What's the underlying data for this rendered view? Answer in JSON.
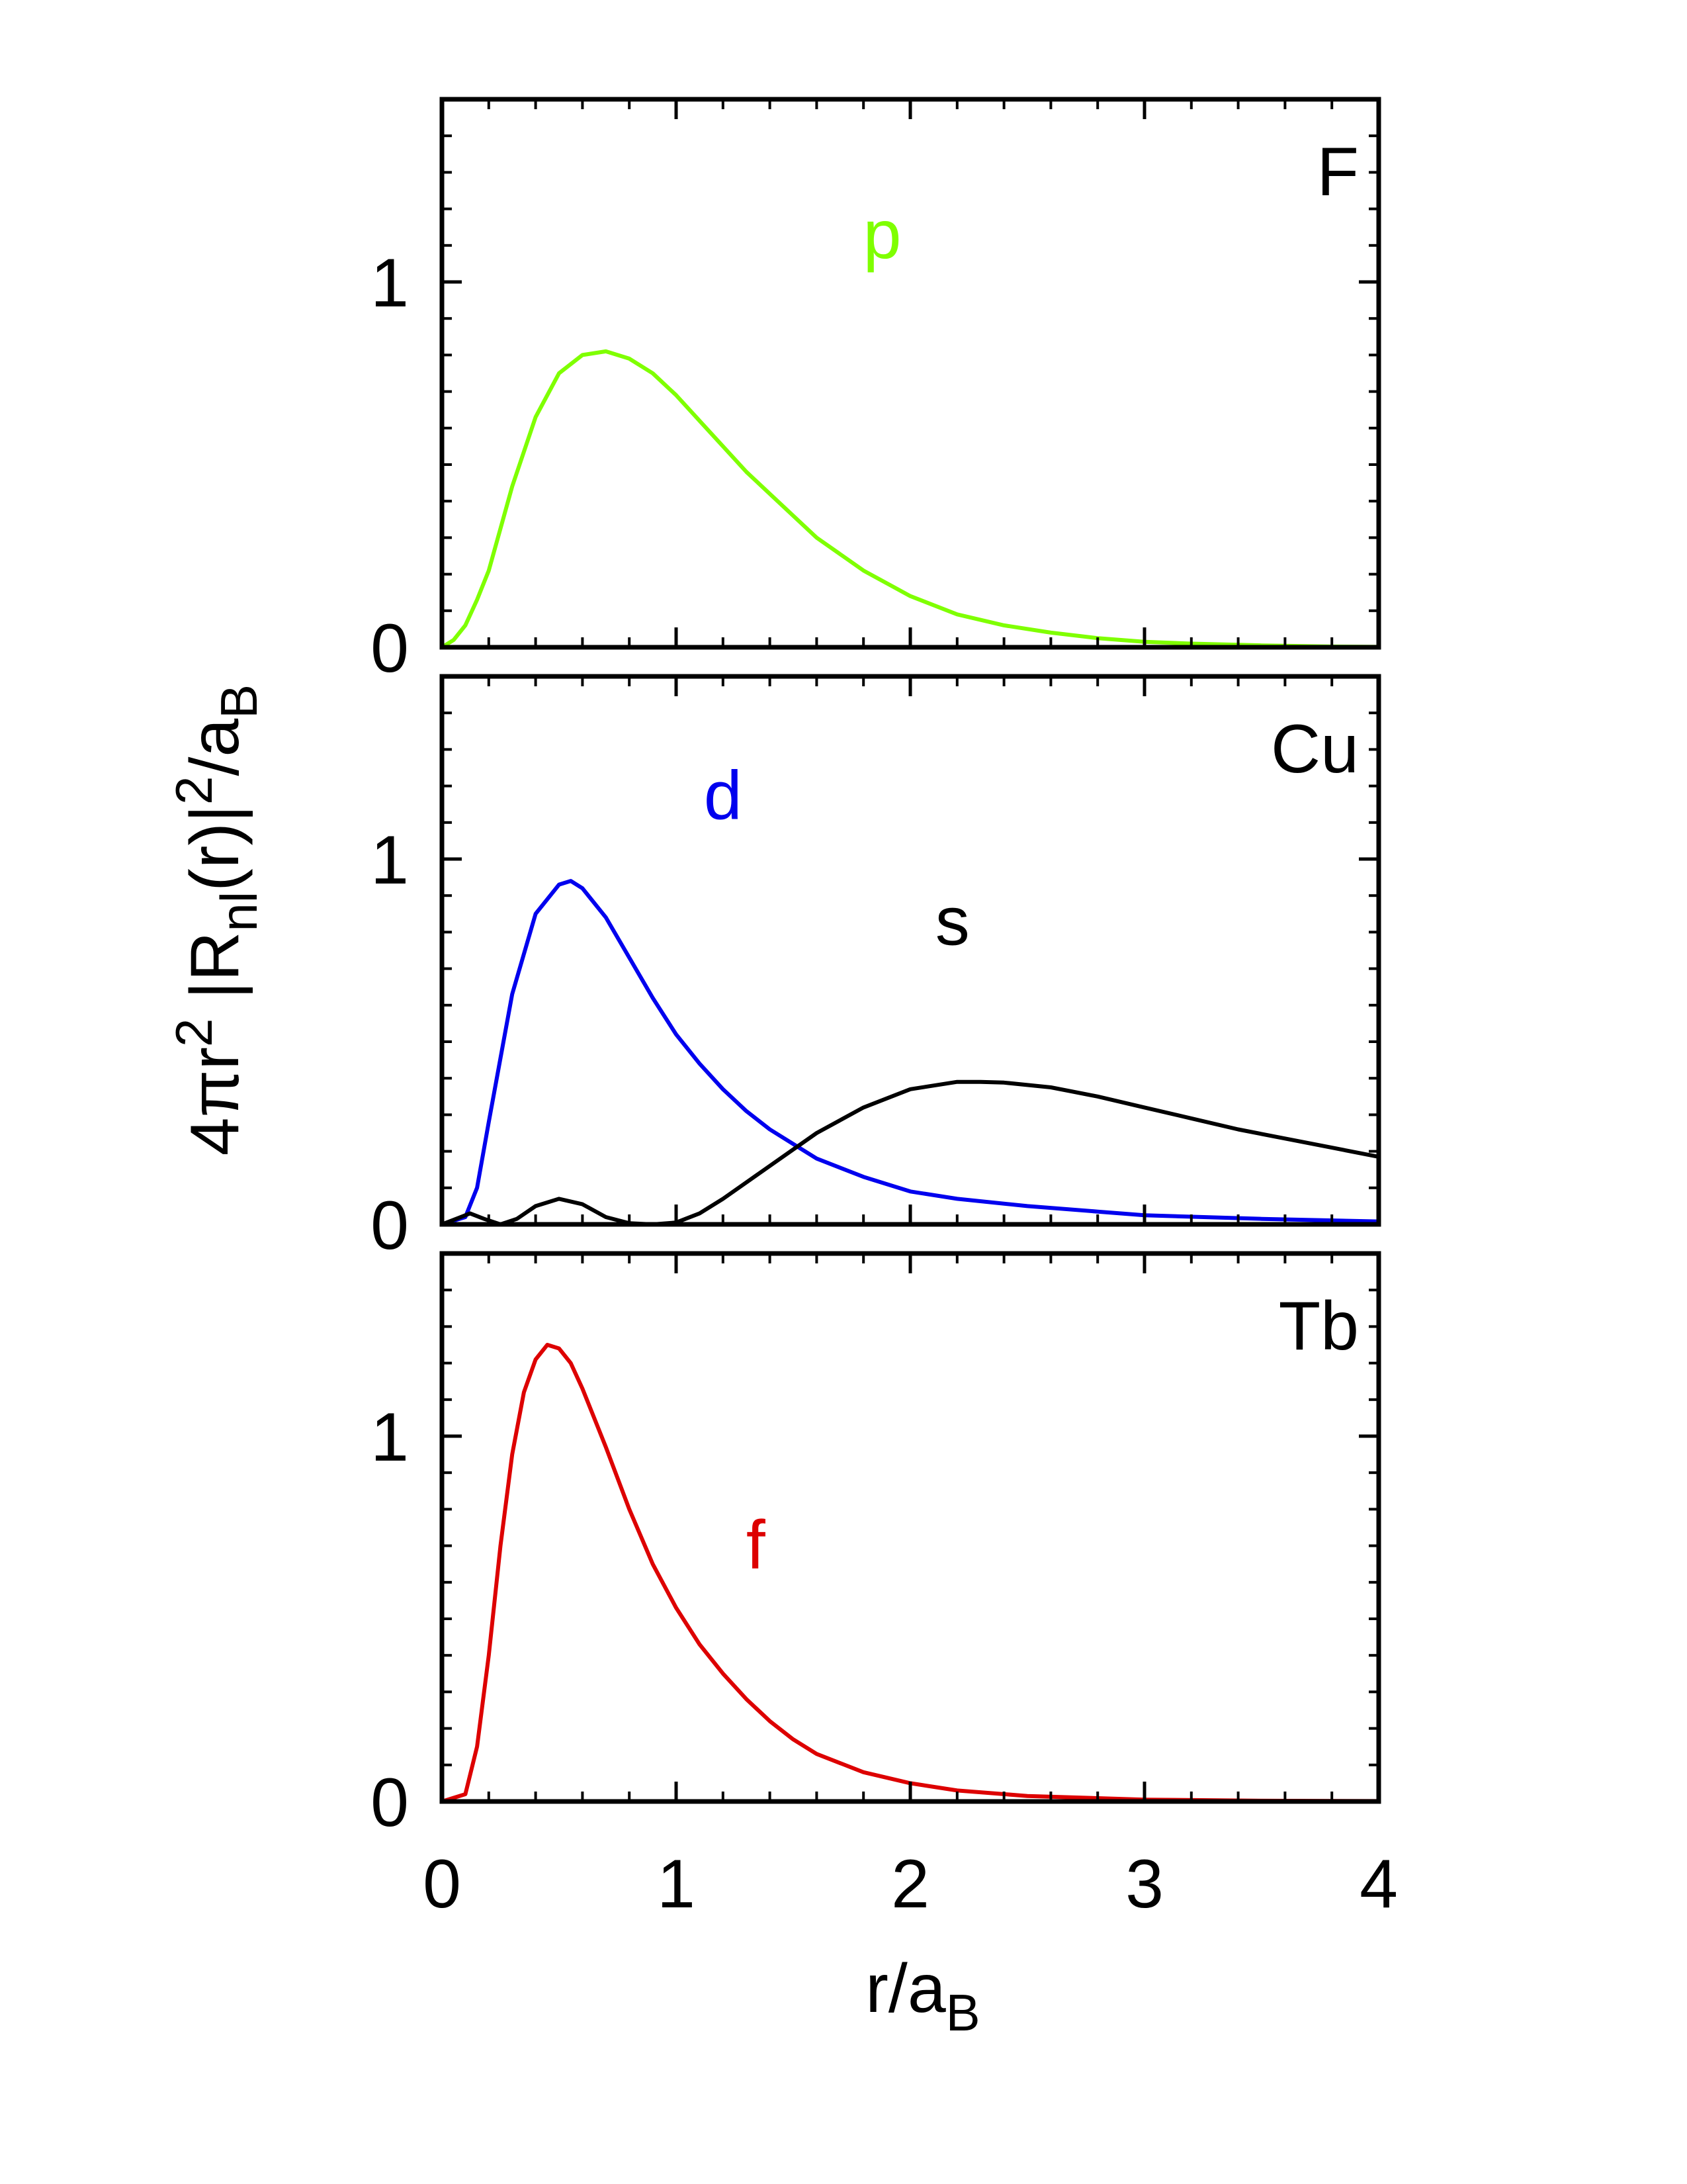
{
  "chart_data": {
    "type": "line",
    "xlabel": "r/a",
    "xlabel_sub": "B",
    "ylabel": "4πr² |R_nl(r)|²/a_B",
    "ylabel_parts": {
      "pre": "4πr",
      "sup1": "2",
      "mid": " |R",
      "sub": "nl",
      "post": "(r)|",
      "sup2": "2",
      "tail": "/a",
      "sub2": "B"
    },
    "xlim": [
      0,
      4
    ],
    "xticks": [
      0,
      1,
      2,
      3,
      4
    ],
    "ylim": [
      0,
      1.5
    ],
    "yticks": [
      0,
      1
    ],
    "panels": [
      {
        "label": "F",
        "series": [
          {
            "name": "p",
            "color": "#7fff00",
            "x": [
              0,
              0.05,
              0.1,
              0.15,
              0.2,
              0.3,
              0.4,
              0.5,
              0.6,
              0.7,
              0.8,
              0.9,
              1.0,
              1.1,
              1.2,
              1.3,
              1.4,
              1.5,
              1.6,
              1.8,
              2.0,
              2.2,
              2.4,
              2.6,
              2.8,
              3.0,
              3.2,
              3.5,
              3.8,
              4.0
            ],
            "y": [
              0,
              0.02,
              0.06,
              0.13,
              0.21,
              0.44,
              0.63,
              0.75,
              0.8,
              0.81,
              0.79,
              0.75,
              0.69,
              0.62,
              0.55,
              0.48,
              0.42,
              0.36,
              0.3,
              0.21,
              0.14,
              0.09,
              0.06,
              0.04,
              0.025,
              0.015,
              0.01,
              0.005,
              0.002,
              0.001
            ]
          }
        ]
      },
      {
        "label": "Cu",
        "series": [
          {
            "name": "d",
            "color": "#0000ee",
            "x": [
              0,
              0.1,
              0.15,
              0.2,
              0.3,
              0.4,
              0.5,
              0.55,
              0.6,
              0.7,
              0.8,
              0.9,
              1.0,
              1.1,
              1.2,
              1.3,
              1.4,
              1.5,
              1.6,
              1.8,
              2.0,
              2.2,
              2.5,
              2.8,
              3.0,
              3.5,
              4.0
            ],
            "y": [
              0,
              0.02,
              0.1,
              0.28,
              0.63,
              0.85,
              0.93,
              0.94,
              0.92,
              0.84,
              0.73,
              0.62,
              0.52,
              0.44,
              0.37,
              0.31,
              0.26,
              0.22,
              0.18,
              0.13,
              0.09,
              0.07,
              0.05,
              0.035,
              0.025,
              0.015,
              0.008
            ]
          },
          {
            "name": "s",
            "color": "#000000",
            "x": [
              0,
              0.08,
              0.12,
              0.18,
              0.25,
              0.32,
              0.4,
              0.5,
              0.6,
              0.7,
              0.8,
              0.9,
              1.0,
              1.1,
              1.2,
              1.4,
              1.6,
              1.8,
              2.0,
              2.2,
              2.3,
              2.4,
              2.6,
              2.8,
              3.0,
              3.2,
              3.4,
              3.6,
              3.8,
              4.0
            ],
            "y": [
              0,
              0.02,
              0.03,
              0.015,
              0.0,
              0.015,
              0.05,
              0.07,
              0.055,
              0.02,
              0.003,
              0.0,
              0.005,
              0.03,
              0.07,
              0.16,
              0.25,
              0.32,
              0.37,
              0.39,
              0.39,
              0.388,
              0.375,
              0.35,
              0.32,
              0.29,
              0.26,
              0.235,
              0.21,
              0.185
            ]
          }
        ]
      },
      {
        "label": "Tb",
        "series": [
          {
            "name": "f",
            "color": "#dd0000",
            "x": [
              0,
              0.1,
              0.15,
              0.2,
              0.25,
              0.3,
              0.35,
              0.4,
              0.45,
              0.5,
              0.55,
              0.6,
              0.7,
              0.8,
              0.9,
              1.0,
              1.1,
              1.2,
              1.3,
              1.4,
              1.5,
              1.6,
              1.8,
              2.0,
              2.2,
              2.5,
              3.0,
              3.5,
              4.0
            ],
            "y": [
              0,
              0.02,
              0.15,
              0.4,
              0.7,
              0.95,
              1.12,
              1.21,
              1.25,
              1.24,
              1.2,
              1.13,
              0.97,
              0.8,
              0.65,
              0.53,
              0.43,
              0.35,
              0.28,
              0.22,
              0.17,
              0.13,
              0.08,
              0.05,
              0.03,
              0.015,
              0.005,
              0.002,
              0.001
            ]
          }
        ]
      }
    ]
  }
}
